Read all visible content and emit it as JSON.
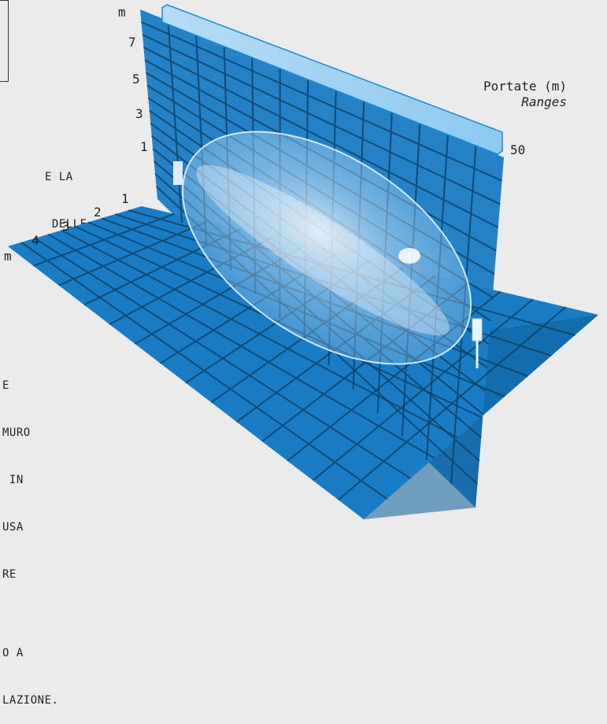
{
  "cut_text": {
    "block_1": [
      "E LA",
      " DELLE"
    ],
    "block_2": [
      "E",
      "MURO",
      " IN",
      "USA",
      "RE",
      "",
      "O A",
      "LAZIONE."
    ]
  },
  "vertical_axis": {
    "unit": "m",
    "ticks": [
      "7",
      "5",
      "3",
      "1"
    ]
  },
  "depth_axis": {
    "unit": "m",
    "ticks": [
      "4",
      "3",
      "2",
      "1"
    ]
  },
  "range_axis": {
    "title": "Portate (m)",
    "subtitle": "Ranges",
    "tick": "50"
  },
  "colors": {
    "plane": "#1a7cc4",
    "plane_dark": "#0f5f99",
    "grid": "#0a3f66",
    "lobe": "#d9efff",
    "background": "#ebebeb"
  }
}
